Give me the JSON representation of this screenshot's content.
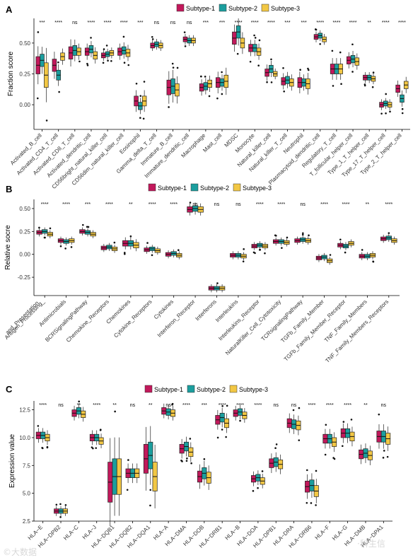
{
  "colors": {
    "Subtype-1": "#c2185b",
    "Subtype-2": "#1b9e9e",
    "Subtype-3": "#f2c744"
  },
  "watermark": {
    "left": "©大数据",
    "right": "·科生信"
  },
  "chart_data": [
    {
      "panel": "A",
      "type": "box",
      "ylabel": "Fraction score",
      "ylim": [
        -0.2,
        0.7
      ],
      "yticks": [
        0.0,
        0.25,
        0.5
      ],
      "yticklabels": [
        "0.00",
        "0.25",
        "0.50"
      ],
      "legend": [
        "Subtype-1",
        "Subtype-2",
        "Subtype-3"
      ],
      "categories": [
        "Activated_B_cell",
        "Activated_CD4_T_cell",
        "Activated_CD8_T_cell",
        "Activated_dendritic_cell",
        "CD56bright_natural_killer_cell",
        "CD56dim_natural_killer_cell",
        "Eosinophil",
        "Gamma_delta_T_cell",
        "Immature_B_cell",
        "Immature_dendritic_cell",
        "Macrophage",
        "Mast_cell",
        "MDSC",
        "Monocyte",
        "Natural_killer_cell",
        "Natural_killer_T_cell",
        "Neutrophil",
        "Plasmacytoid_dendritic_cell",
        "Regulatory_T_cell",
        "T_follicular_helper_cell",
        "Type_1_T_helper_cell",
        "Type_17_T_helper_cell",
        "Type_2_T_helper_cell"
      ],
      "significance": [
        "***",
        "****",
        "ns",
        "****",
        "****",
        "****",
        "***",
        "ns",
        "ns",
        "ns",
        "***",
        "***",
        "****",
        "****",
        "****",
        "***",
        "***",
        "****",
        "****",
        "****",
        "**",
        "****",
        "****"
      ],
      "centers": [
        [
          0.32,
          0.36,
          0.24
        ],
        [
          0.32,
          0.24,
          0.39
        ],
        [
          0.42,
          0.44,
          0.43
        ],
        [
          0.43,
          0.45,
          0.4
        ],
        [
          0.4,
          0.41,
          0.42
        ],
        [
          0.43,
          0.44,
          0.42
        ],
        [
          0.03,
          -0.01,
          0.03
        ],
        [
          0.48,
          0.49,
          0.48
        ],
        [
          0.14,
          0.15,
          0.12
        ],
        [
          0.53,
          0.52,
          0.52
        ],
        [
          0.14,
          0.15,
          0.17
        ],
        [
          0.18,
          0.18,
          0.19
        ],
        [
          0.54,
          0.59,
          0.5
        ],
        [
          0.46,
          0.46,
          0.43
        ],
        [
          0.26,
          0.29,
          0.25
        ],
        [
          0.19,
          0.2,
          0.18
        ],
        [
          0.18,
          0.18,
          0.17
        ],
        [
          0.55,
          0.56,
          0.53
        ],
        [
          0.29,
          0.29,
          0.29
        ],
        [
          0.36,
          0.37,
          0.35
        ],
        [
          0.22,
          0.22,
          0.21
        ],
        [
          0.0,
          0.01,
          0.0
        ],
        [
          0.13,
          0.05,
          0.16
        ]
      ],
      "spreads": [
        [
          0.07,
          0.05,
          0.1
        ],
        [
          0.05,
          0.04,
          0.03
        ],
        [
          0.05,
          0.04,
          0.03
        ],
        [
          0.03,
          0.03,
          0.03
        ],
        [
          0.02,
          0.02,
          0.02
        ],
        [
          0.03,
          0.03,
          0.03
        ],
        [
          0.04,
          0.03,
          0.04
        ],
        [
          0.02,
          0.02,
          0.02
        ],
        [
          0.06,
          0.06,
          0.05
        ],
        [
          0.02,
          0.02,
          0.02
        ],
        [
          0.03,
          0.03,
          0.03
        ],
        [
          0.04,
          0.03,
          0.05
        ],
        [
          0.05,
          0.05,
          0.04
        ],
        [
          0.03,
          0.03,
          0.03
        ],
        [
          0.03,
          0.03,
          0.02
        ],
        [
          0.03,
          0.03,
          0.03
        ],
        [
          0.04,
          0.03,
          0.04
        ],
        [
          0.02,
          0.02,
          0.02
        ],
        [
          0.04,
          0.04,
          0.04
        ],
        [
          0.03,
          0.03,
          0.03
        ],
        [
          0.02,
          0.02,
          0.02
        ],
        [
          0.02,
          0.02,
          0.02
        ],
        [
          0.03,
          0.03,
          0.03
        ]
      ]
    },
    {
      "panel": "B",
      "type": "box",
      "ylabel": "Relative socre",
      "ylim": [
        -0.45,
        0.6
      ],
      "yticks": [
        -0.25,
        0.0,
        0.25,
        0.5
      ],
      "yticklabels": [
        "-0.25",
        "0.00",
        "0.25",
        "0.50"
      ],
      "legend": [
        "Subtype-1",
        "Subtype-2",
        "Subtype-3"
      ],
      "categories": [
        "Antigen_Processing_\nand_Presentation",
        "Antimicrobials",
        "BCRSignalingPathway",
        "Chemokine_Receptors",
        "Chemokines",
        "Cytokine_Receptors",
        "Cytokines",
        "Interferon_Receptor",
        "Interferons",
        "Interleukins",
        "Interleukins_Receptor",
        "NaturalKiller_Cell_Cytotoxicity",
        "TCRsignalingPathway",
        "TGFb_Family_Member",
        "TGFb_Family_Member_Receptor",
        "TNF_Family_Members",
        "TNF_Family_Members_Receptors"
      ],
      "significance": [
        "****",
        "****",
        "***",
        "****",
        "**",
        "****",
        "****",
        "ns",
        "ns",
        "ns",
        "****",
        "****",
        "ns",
        "****",
        "****",
        "**",
        "****"
      ],
      "centers": [
        [
          0.24,
          0.25,
          0.22
        ],
        [
          0.15,
          0.14,
          0.15
        ],
        [
          0.25,
          0.24,
          0.22
        ],
        [
          0.07,
          0.08,
          0.06
        ],
        [
          0.12,
          0.12,
          0.1
        ],
        [
          0.05,
          0.06,
          0.04
        ],
        [
          0.0,
          0.01,
          -0.01
        ],
        [
          0.49,
          0.5,
          0.49
        ],
        [
          -0.37,
          -0.37,
          -0.37
        ],
        [
          -0.01,
          -0.01,
          -0.02
        ],
        [
          0.09,
          0.1,
          0.09
        ],
        [
          0.14,
          0.14,
          0.13
        ],
        [
          0.15,
          0.16,
          0.15
        ],
        [
          -0.04,
          -0.03,
          -0.07
        ],
        [
          0.1,
          0.09,
          0.12
        ],
        [
          -0.02,
          -0.02,
          -0.01
        ],
        [
          0.17,
          0.18,
          0.15
        ]
      ],
      "spreads": [
        [
          0.02,
          0.02,
          0.02
        ],
        [
          0.02,
          0.02,
          0.02
        ],
        [
          0.02,
          0.02,
          0.02
        ],
        [
          0.02,
          0.02,
          0.02
        ],
        [
          0.03,
          0.03,
          0.03
        ],
        [
          0.02,
          0.02,
          0.02
        ],
        [
          0.02,
          0.02,
          0.02
        ],
        [
          0.03,
          0.03,
          0.03
        ],
        [
          0.02,
          0.02,
          0.02
        ],
        [
          0.02,
          0.02,
          0.02
        ],
        [
          0.02,
          0.02,
          0.02
        ],
        [
          0.02,
          0.02,
          0.02
        ],
        [
          0.02,
          0.02,
          0.02
        ],
        [
          0.02,
          0.02,
          0.02
        ],
        [
          0.02,
          0.02,
          0.02
        ],
        [
          0.02,
          0.02,
          0.02
        ],
        [
          0.02,
          0.02,
          0.02
        ]
      ]
    },
    {
      "panel": "C",
      "type": "box",
      "ylabel": "Expression value",
      "ylim": [
        2.5,
        13.3
      ],
      "yticks": [
        2.5,
        5.0,
        7.5,
        10.0,
        12.5
      ],
      "yticklabels": [
        "2.5",
        "5.0",
        "7.5",
        "10.0",
        "12.5"
      ],
      "legend": [
        "Subtype-1",
        "Subtype-2",
        "Subtype-3"
      ],
      "categories": [
        "HLA−E",
        "HLA−DPB2",
        "HLA−C",
        "HLA−J",
        "HLA−DQB1",
        "HLA−DQB2",
        "HLA−DQA1",
        "HLA−A",
        "HLA−DMA",
        "HLA−DOB",
        "HLA−DRB1",
        "HLA−B",
        "HLA−DOA",
        "HLA−DPB1",
        "HLA−DRA",
        "HLA−DRB6",
        "HLA−F",
        "HLA−G",
        "HLA−DMB",
        "HLA−DPA1"
      ],
      "significance": [
        "****",
        "ns",
        "**",
        "****",
        "**",
        "ns",
        "**",
        "ns",
        "****",
        "***",
        "****",
        "****",
        "****",
        "ns",
        "ns",
        "****",
        "****",
        "****",
        "**",
        "ns"
      ],
      "centers": [
        [
          10.2,
          10.2,
          10.0
        ],
        [
          3.4,
          3.4,
          3.4
        ],
        [
          12.2,
          12.4,
          12.1
        ],
        [
          10.0,
          10.0,
          9.7
        ],
        [
          6.0,
          6.5,
          6.5
        ],
        [
          6.8,
          6.8,
          6.8
        ],
        [
          8.1,
          8.4,
          6.5
        ],
        [
          12.4,
          12.3,
          12.2
        ],
        [
          9.0,
          9.2,
          8.7
        ],
        [
          6.5,
          6.8,
          6.4
        ],
        [
          11.6,
          11.8,
          11.3
        ],
        [
          12.2,
          12.3,
          12.0
        ],
        [
          6.3,
          6.4,
          6.1
        ],
        [
          7.7,
          7.8,
          7.6
        ],
        [
          11.3,
          11.2,
          11.1
        ],
        [
          5.6,
          5.7,
          5.2
        ],
        [
          9.9,
          9.9,
          9.6
        ],
        [
          10.4,
          10.4,
          10.1
        ],
        [
          8.5,
          8.6,
          8.4
        ],
        [
          10.1,
          10.1,
          9.9
        ]
      ],
      "spreads": [
        [
          0.3,
          0.3,
          0.3
        ],
        [
          0.2,
          0.2,
          0.2
        ],
        [
          0.3,
          0.3,
          0.3
        ],
        [
          0.3,
          0.3,
          0.3
        ],
        [
          1.8,
          1.6,
          1.6
        ],
        [
          0.4,
          0.4,
          0.4
        ],
        [
          1.3,
          1.2,
          1.3
        ],
        [
          0.3,
          0.3,
          0.3
        ],
        [
          0.4,
          0.4,
          0.4
        ],
        [
          0.5,
          0.5,
          0.5
        ],
        [
          0.4,
          0.4,
          0.4
        ],
        [
          0.3,
          0.3,
          0.3
        ],
        [
          0.3,
          0.3,
          0.3
        ],
        [
          0.4,
          0.4,
          0.4
        ],
        [
          0.4,
          0.4,
          0.4
        ],
        [
          0.5,
          0.5,
          0.5
        ],
        [
          0.4,
          0.4,
          0.4
        ],
        [
          0.4,
          0.4,
          0.4
        ],
        [
          0.4,
          0.4,
          0.4
        ],
        [
          0.5,
          0.5,
          0.5
        ]
      ]
    }
  ]
}
